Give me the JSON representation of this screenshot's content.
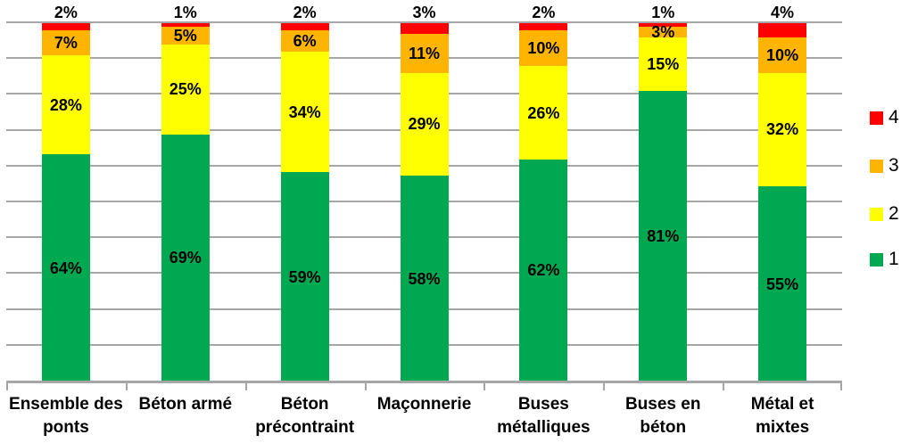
{
  "chart_data": {
    "type": "bar",
    "stacked": true,
    "title": "",
    "xlabel": "",
    "ylabel": "",
    "value_suffix": "%",
    "ylim": [
      0,
      100
    ],
    "grid": true,
    "gridline_step_pct": 10,
    "legend_position": "right",
    "categories": [
      "Ensemble des ponts",
      "Béton armé",
      "Béton précontraint",
      "Maçonnerie",
      "Buses métalliques",
      "Buses en béton",
      "Métal et mixtes"
    ],
    "series": [
      {
        "name": "1",
        "color": "#00A851",
        "label_placement": "inside",
        "values": [
          64,
          69,
          59,
          58,
          62,
          81,
          55
        ]
      },
      {
        "name": "2",
        "color": "#FFFF00",
        "label_placement": "inside",
        "values": [
          28,
          25,
          34,
          29,
          26,
          15,
          32
        ]
      },
      {
        "name": "3",
        "color": "#FFB400",
        "label_placement": "inside",
        "values": [
          7,
          5,
          6,
          11,
          10,
          3,
          10
        ]
      },
      {
        "name": "4",
        "color": "#FF0000",
        "label_placement": "above",
        "values": [
          2,
          1,
          2,
          3,
          2,
          1,
          4
        ]
      }
    ],
    "legend": [
      {
        "label": "4",
        "color": "#FF0000"
      },
      {
        "label": "3",
        "color": "#FFB400"
      },
      {
        "label": "2",
        "color": "#FFFF00"
      },
      {
        "label": "1",
        "color": "#00A851"
      }
    ]
  },
  "colors": {
    "gridline": "#A6A6A6",
    "axis": "#A6A6A6",
    "text": "#000000",
    "background": "#FFFFFF"
  }
}
